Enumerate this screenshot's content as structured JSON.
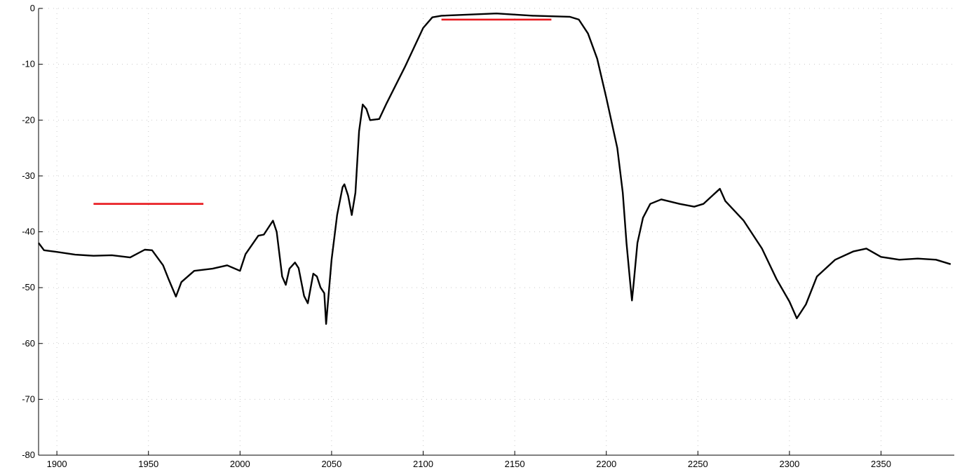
{
  "chart_data": {
    "type": "line",
    "title": "",
    "xlabel": "",
    "ylabel": "",
    "xlim": [
      1890,
      2390
    ],
    "ylim": [
      -80,
      0
    ],
    "x_ticks": [
      1900,
      1950,
      2000,
      2050,
      2100,
      2150,
      2200,
      2250,
      2300,
      2350
    ],
    "y_ticks": [
      0,
      -10,
      -20,
      -30,
      -40,
      -50,
      -60,
      -70,
      -80
    ],
    "grid": "dotted",
    "legend": "none",
    "series": [
      {
        "color": "#000000",
        "points": [
          [
            1890,
            -42
          ],
          [
            1893,
            -43.3
          ],
          [
            1900,
            -43.6
          ],
          [
            1910,
            -44.1
          ],
          [
            1920,
            -44.3
          ],
          [
            1930,
            -44.2
          ],
          [
            1940,
            -44.6
          ],
          [
            1948,
            -43.2
          ],
          [
            1952,
            -43.3
          ],
          [
            1958,
            -46
          ],
          [
            1961,
            -48.5
          ],
          [
            1965,
            -51.6
          ],
          [
            1968,
            -49
          ],
          [
            1975,
            -47
          ],
          [
            1985,
            -46.6
          ],
          [
            1993,
            -46
          ],
          [
            2000,
            -47
          ],
          [
            2003,
            -44
          ],
          [
            2010,
            -40.7
          ],
          [
            2013,
            -40.5
          ],
          [
            2018,
            -38
          ],
          [
            2020,
            -40
          ],
          [
            2023,
            -48
          ],
          [
            2025,
            -49.5
          ],
          [
            2027,
            -46.6
          ],
          [
            2030,
            -45.5
          ],
          [
            2032,
            -46.5
          ],
          [
            2035,
            -51.5
          ],
          [
            2037,
            -52.8
          ],
          [
            2040,
            -47.5
          ],
          [
            2042,
            -48
          ],
          [
            2044,
            -50
          ],
          [
            2046,
            -51
          ],
          [
            2047,
            -56.5
          ],
          [
            2050,
            -45
          ],
          [
            2053,
            -37
          ],
          [
            2056,
            -32
          ],
          [
            2057,
            -31.5
          ],
          [
            2059,
            -33.5
          ],
          [
            2061,
            -37
          ],
          [
            2063,
            -33
          ],
          [
            2065,
            -22
          ],
          [
            2067,
            -17.2
          ],
          [
            2069,
            -18
          ],
          [
            2071,
            -20
          ],
          [
            2076,
            -19.8
          ],
          [
            2080,
            -17
          ],
          [
            2090,
            -10.5
          ],
          [
            2100,
            -3.5
          ],
          [
            2105,
            -1.6
          ],
          [
            2110,
            -1.3
          ],
          [
            2140,
            -0.9
          ],
          [
            2160,
            -1.3
          ],
          [
            2180,
            -1.5
          ],
          [
            2185,
            -2
          ],
          [
            2190,
            -4.5
          ],
          [
            2195,
            -9
          ],
          [
            2200,
            -16
          ],
          [
            2206,
            -25
          ],
          [
            2209,
            -33
          ],
          [
            2211,
            -42
          ],
          [
            2213,
            -49
          ],
          [
            2214,
            -52.3
          ],
          [
            2215,
            -49
          ],
          [
            2217,
            -42
          ],
          [
            2220,
            -37.5
          ],
          [
            2224,
            -35
          ],
          [
            2230,
            -34.2
          ],
          [
            2240,
            -35
          ],
          [
            2248,
            -35.5
          ],
          [
            2253,
            -35
          ],
          [
            2258,
            -33.5
          ],
          [
            2262,
            -32.3
          ],
          [
            2265,
            -34.5
          ],
          [
            2275,
            -38
          ],
          [
            2285,
            -43
          ],
          [
            2293,
            -48.5
          ],
          [
            2300,
            -52.5
          ],
          [
            2304,
            -55.5
          ],
          [
            2309,
            -53
          ],
          [
            2315,
            -48
          ],
          [
            2325,
            -45
          ],
          [
            2335,
            -43.5
          ],
          [
            2342,
            -43
          ],
          [
            2350,
            -44.5
          ],
          [
            2360,
            -45
          ],
          [
            2370,
            -44.8
          ],
          [
            2380,
            -45
          ],
          [
            2388,
            -45.8
          ]
        ]
      },
      {
        "color": "#e8161b",
        "points": [
          [
            1920,
            -35
          ],
          [
            1980,
            -35
          ]
        ]
      },
      {
        "color": "#e8161b",
        "points": [
          [
            2110,
            -2
          ],
          [
            2170,
            -2
          ]
        ]
      }
    ]
  }
}
